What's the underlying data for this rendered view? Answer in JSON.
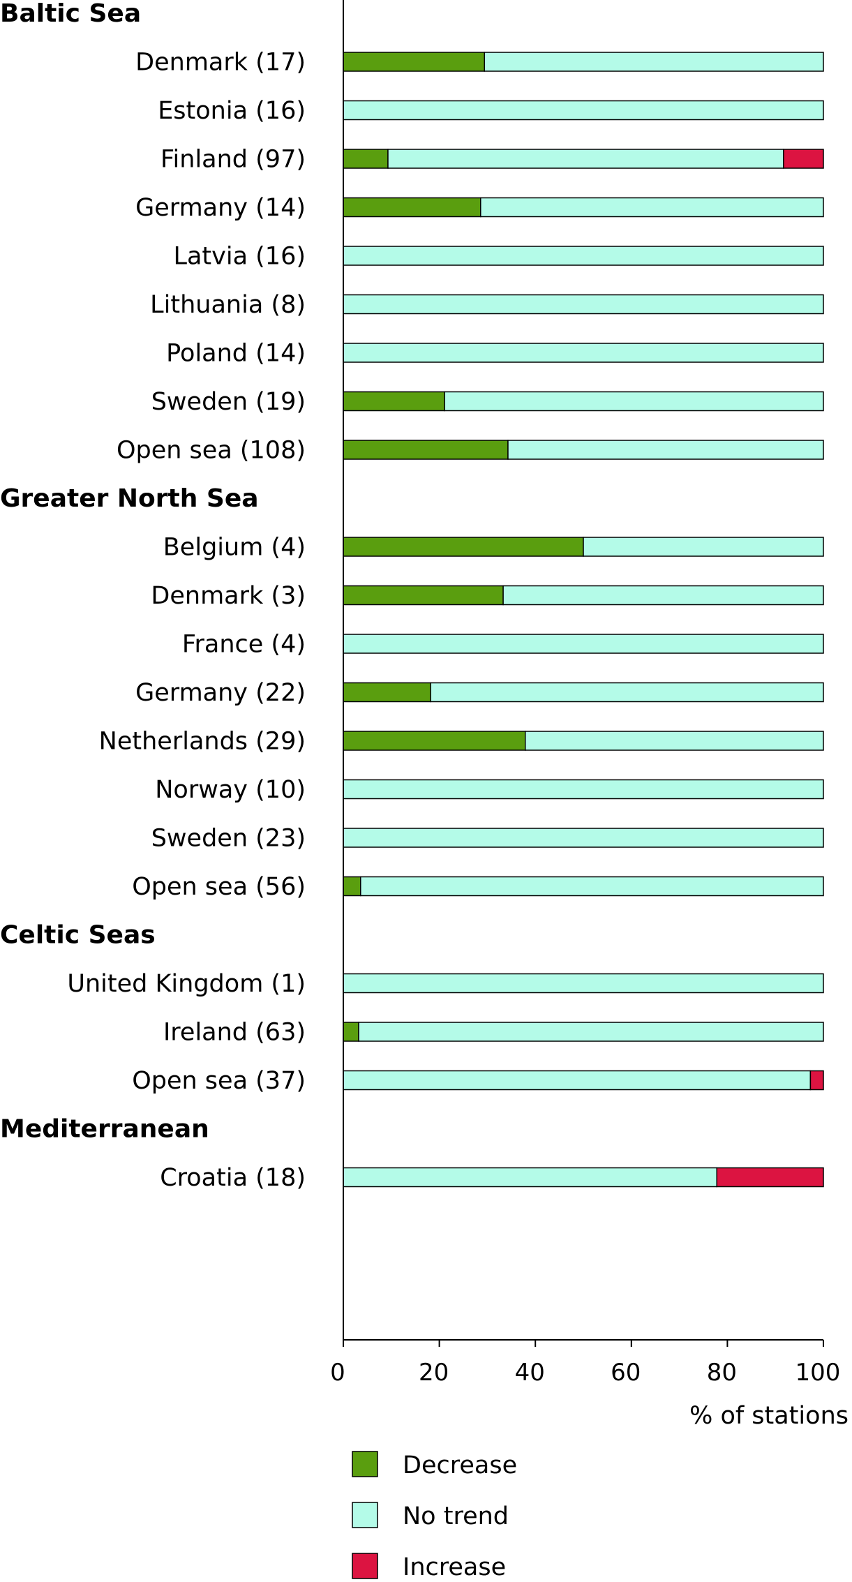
{
  "chart_data": {
    "type": "bar",
    "orientation": "horizontal",
    "stacked": true,
    "xlabel": "% of stations",
    "ylabel": "",
    "xlim": [
      0,
      100
    ],
    "x_ticks": [
      "0",
      "20",
      "40",
      "60",
      "80",
      "100"
    ],
    "grid": false,
    "legend_position": "bottom",
    "series": [
      {
        "name": "Decrease",
        "color": "#5a9e0f"
      },
      {
        "name": "No trend",
        "color": "#b4fbe8"
      },
      {
        "name": "Increase",
        "color": "#dc1441"
      }
    ],
    "groups": [
      {
        "name": "Baltic Sea",
        "items": [
          {
            "label": "Denmark (17)",
            "values": [
              29.4,
              70.6,
              0
            ]
          },
          {
            "label": "Estonia (16)",
            "values": [
              0,
              100,
              0
            ]
          },
          {
            "label": "Finland (97)",
            "values": [
              9.3,
              82.4,
              8.3
            ]
          },
          {
            "label": "Germany (14)",
            "values": [
              28.6,
              71.4,
              0
            ]
          },
          {
            "label": "Latvia (16)",
            "values": [
              0,
              100,
              0
            ]
          },
          {
            "label": "Lithuania (8)",
            "values": [
              0,
              100,
              0
            ]
          },
          {
            "label": "Poland (14)",
            "values": [
              0,
              100,
              0
            ]
          },
          {
            "label": "Sweden (19)",
            "values": [
              21.1,
              78.9,
              0
            ]
          },
          {
            "label": "Open sea (108)",
            "values": [
              34.3,
              65.7,
              0
            ]
          }
        ]
      },
      {
        "name": "Greater North Sea",
        "items": [
          {
            "label": "Belgium (4)",
            "values": [
              50,
              50,
              0
            ]
          },
          {
            "label": "Denmark (3)",
            "values": [
              33.3,
              66.7,
              0
            ]
          },
          {
            "label": "France (4)",
            "values": [
              0,
              100,
              0
            ]
          },
          {
            "label": "Germany (22)",
            "values": [
              18.2,
              81.8,
              0
            ]
          },
          {
            "label": "Netherlands (29)",
            "values": [
              37.9,
              62.1,
              0
            ]
          },
          {
            "label": "Norway (10)",
            "values": [
              0,
              100,
              0
            ]
          },
          {
            "label": "Sweden (23)",
            "values": [
              0,
              100,
              0
            ]
          },
          {
            "label": "Open sea (56)",
            "values": [
              3.6,
              96.4,
              0
            ]
          }
        ]
      },
      {
        "name": "Celtic Seas",
        "items": [
          {
            "label": "United Kingdom (1)",
            "values": [
              0,
              100,
              0
            ]
          },
          {
            "label": "Ireland (63)",
            "values": [
              3.2,
              96.8,
              0
            ]
          },
          {
            "label": "Open sea (37)",
            "values": [
              0,
              97.3,
              2.7
            ]
          }
        ]
      },
      {
        "name": "Mediterranean",
        "items": [
          {
            "label": "Croatia (18)",
            "values": [
              0,
              77.8,
              22.2
            ]
          }
        ]
      }
    ]
  }
}
